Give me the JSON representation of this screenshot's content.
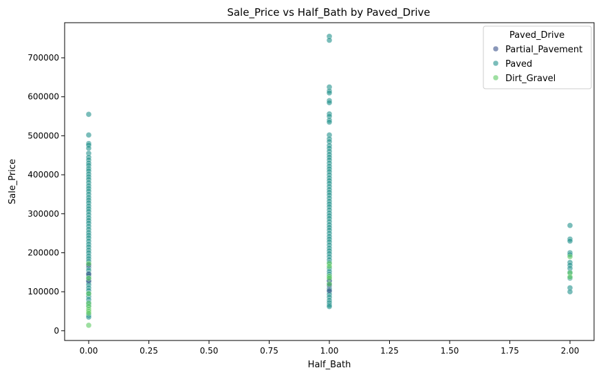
{
  "chart_data": {
    "type": "scatter",
    "title": "Sale_Price vs Half_Bath by Paved_Drive",
    "xlabel": "Half_Bath",
    "ylabel": "Sale_Price",
    "xlim": [
      -0.1,
      2.1
    ],
    "ylim": [
      -25000,
      790000
    ],
    "x_ticks": [
      0.0,
      0.25,
      0.5,
      0.75,
      1.0,
      1.25,
      1.5,
      1.75,
      2.0
    ],
    "x_tick_labels": [
      "0.00",
      "0.25",
      "0.50",
      "0.75",
      "1.00",
      "1.25",
      "1.50",
      "1.75",
      "2.00"
    ],
    "y_ticks": [
      0,
      100000,
      200000,
      300000,
      400000,
      500000,
      600000,
      700000
    ],
    "y_tick_labels": [
      "0",
      "100000",
      "200000",
      "300000",
      "400000",
      "500000",
      "600000",
      "700000"
    ],
    "grid": false,
    "legend": {
      "title": "Paved_Drive",
      "placement": "top-right"
    },
    "series": [
      {
        "name": "Paved",
        "color": "#21918c",
        "points": [
          [
            0,
            555000
          ],
          [
            0,
            502000
          ],
          [
            0,
            480000
          ],
          [
            0,
            476000
          ],
          [
            0,
            468000
          ],
          [
            0,
            455000
          ],
          [
            0,
            445000
          ],
          [
            0,
            438000
          ],
          [
            0,
            430000
          ],
          [
            0,
            424000
          ],
          [
            0,
            416000
          ],
          [
            0,
            410000
          ],
          [
            0,
            402000
          ],
          [
            0,
            395000
          ],
          [
            0,
            388000
          ],
          [
            0,
            380000
          ],
          [
            0,
            372000
          ],
          [
            0,
            365000
          ],
          [
            0,
            358000
          ],
          [
            0,
            350000
          ],
          [
            0,
            342000
          ],
          [
            0,
            335000
          ],
          [
            0,
            328000
          ],
          [
            0,
            320000
          ],
          [
            0,
            313000
          ],
          [
            0,
            306000
          ],
          [
            0,
            298000
          ],
          [
            0,
            290000
          ],
          [
            0,
            283000
          ],
          [
            0,
            276000
          ],
          [
            0,
            268000
          ],
          [
            0,
            260000
          ],
          [
            0,
            252000
          ],
          [
            0,
            245000
          ],
          [
            0,
            238000
          ],
          [
            0,
            230000
          ],
          [
            0,
            222000
          ],
          [
            0,
            215000
          ],
          [
            0,
            207000
          ],
          [
            0,
            200000
          ],
          [
            0,
            192000
          ],
          [
            0,
            185000
          ],
          [
            0,
            178000
          ],
          [
            0,
            170000
          ],
          [
            0,
            162000
          ],
          [
            0,
            155000
          ],
          [
            0,
            147000
          ],
          [
            0,
            140000
          ],
          [
            0,
            133000
          ],
          [
            0,
            125000
          ],
          [
            0,
            118000
          ],
          [
            0,
            110000
          ],
          [
            0,
            103000
          ],
          [
            0,
            96000
          ],
          [
            0,
            88000
          ],
          [
            0,
            80000
          ],
          [
            0,
            72000
          ],
          [
            0,
            65000
          ],
          [
            0,
            40000
          ],
          [
            0,
            35000
          ],
          [
            1,
            755000
          ],
          [
            1,
            745000
          ],
          [
            1,
            625000
          ],
          [
            1,
            615000
          ],
          [
            1,
            610000
          ],
          [
            1,
            590000
          ],
          [
            1,
            585000
          ],
          [
            1,
            556000
          ],
          [
            1,
            550000
          ],
          [
            1,
            540000
          ],
          [
            1,
            535000
          ],
          [
            1,
            502000
          ],
          [
            1,
            492000
          ],
          [
            1,
            485000
          ],
          [
            1,
            475000
          ],
          [
            1,
            468000
          ],
          [
            1,
            460000
          ],
          [
            1,
            452000
          ],
          [
            1,
            445000
          ],
          [
            1,
            438000
          ],
          [
            1,
            430000
          ],
          [
            1,
            422000
          ],
          [
            1,
            415000
          ],
          [
            1,
            408000
          ],
          [
            1,
            400000
          ],
          [
            1,
            392000
          ],
          [
            1,
            385000
          ],
          [
            1,
            378000
          ],
          [
            1,
            370000
          ],
          [
            1,
            362000
          ],
          [
            1,
            355000
          ],
          [
            1,
            348000
          ],
          [
            1,
            340000
          ],
          [
            1,
            332000
          ],
          [
            1,
            325000
          ],
          [
            1,
            318000
          ],
          [
            1,
            310000
          ],
          [
            1,
            302000
          ],
          [
            1,
            295000
          ],
          [
            1,
            288000
          ],
          [
            1,
            280000
          ],
          [
            1,
            272000
          ],
          [
            1,
            265000
          ],
          [
            1,
            258000
          ],
          [
            1,
            250000
          ],
          [
            1,
            242000
          ],
          [
            1,
            235000
          ],
          [
            1,
            228000
          ],
          [
            1,
            220000
          ],
          [
            1,
            212000
          ],
          [
            1,
            205000
          ],
          [
            1,
            198000
          ],
          [
            1,
            190000
          ],
          [
            1,
            182000
          ],
          [
            1,
            175000
          ],
          [
            1,
            160000
          ],
          [
            1,
            152000
          ],
          [
            1,
            145000
          ],
          [
            1,
            138000
          ],
          [
            1,
            130000
          ],
          [
            1,
            122000
          ],
          [
            1,
            115000
          ],
          [
            1,
            108000
          ],
          [
            1,
            100000
          ],
          [
            1,
            93000
          ],
          [
            1,
            86000
          ],
          [
            1,
            78000
          ],
          [
            1,
            72000
          ],
          [
            1,
            66000
          ],
          [
            1,
            62000
          ],
          [
            2,
            270000
          ],
          [
            2,
            235000
          ],
          [
            2,
            230000
          ],
          [
            2,
            200000
          ],
          [
            2,
            195000
          ],
          [
            2,
            175000
          ],
          [
            2,
            168000
          ],
          [
            2,
            160000
          ],
          [
            2,
            150000
          ],
          [
            2,
            135000
          ],
          [
            2,
            110000
          ],
          [
            2,
            100000
          ]
        ]
      },
      {
        "name": "Partial_Pavement",
        "color": "#3b528b",
        "points": [
          [
            0,
            168000
          ],
          [
            0,
            145000
          ],
          [
            0,
            128000
          ],
          [
            1,
            128000
          ],
          [
            1,
            117000
          ],
          [
            1,
            103000
          ]
        ]
      },
      {
        "name": "Dirt_Gravel",
        "color": "#5ec962",
        "points": [
          [
            0,
            172000
          ],
          [
            0,
            135000
          ],
          [
            0,
            95000
          ],
          [
            0,
            70000
          ],
          [
            0,
            62000
          ],
          [
            0,
            55000
          ],
          [
            0,
            50000
          ],
          [
            0,
            45000
          ],
          [
            0,
            14000
          ],
          [
            1,
            172000
          ],
          [
            1,
            165000
          ],
          [
            1,
            140000
          ],
          [
            1,
            135000
          ],
          [
            1,
            120000
          ],
          [
            2,
            190000
          ],
          [
            2,
            148000
          ],
          [
            2,
            138000
          ]
        ]
      }
    ]
  },
  "legend_order": [
    "Partial_Pavement",
    "Paved",
    "Dirt_Gravel"
  ]
}
